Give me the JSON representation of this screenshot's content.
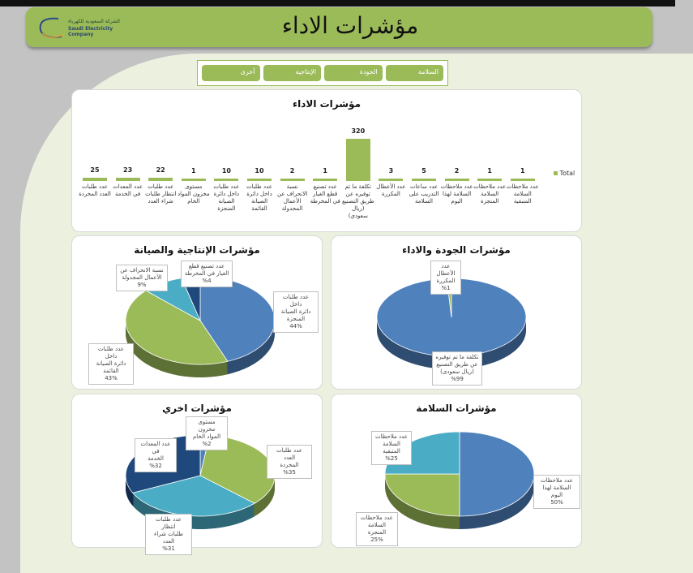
{
  "header": {
    "title": "مؤشرات الاداء",
    "logo_ar": "الشركة السعودية للكهرباء",
    "logo_en": "Saudi Electricity Company"
  },
  "tabs": [
    {
      "label": "أخرى"
    },
    {
      "label": "الإنتاجية"
    },
    {
      "label": "الجودة"
    },
    {
      "label": "السلامة"
    }
  ],
  "colors": {
    "green": "#9bbb59",
    "blue": "#4f81bd",
    "teal": "#4bacc6",
    "navy": "#1f497d",
    "panel": "#ebf1de"
  },
  "chart_data": [
    {
      "type": "bar",
      "title": "مؤشرات الاداء",
      "legend": "Total",
      "legend_position": "right",
      "grid": false,
      "categories": [
        "عدد طلبات العدد المخردة",
        "عدد المعدات في الخدمة",
        "عدد طلبات انتظار طلبات شراء العدد",
        "مستوى مخزون المواد الخام",
        "عدد طلبات داخل دائرة الصيانة المنجزة",
        "عدد طلبات داخل دائرة الصيانة القائمة",
        "نسبة الانحراف عن الأعمال المجدولة",
        "عدد تصنيع قطع الغيار في المخرطة",
        "تكلفة ما تم توفيره عن طريق التصنيع (ريال سعودي)",
        "عدد الأعطال المكررة",
        "عدد ساعات التدريب على السلامة",
        "عدد ملاحظات السلامة لهذا اليوم",
        "عدد ملاحظات السلامة المنجزة",
        "عدد ملاحظات السلامة المتبقية"
      ],
      "values": [
        25,
        23,
        22,
        1,
        10,
        10,
        2,
        1,
        320,
        3,
        5,
        2,
        1,
        1
      ]
    },
    {
      "type": "pie",
      "title": "مؤشرات الإنتاجية والصيانة",
      "slices": [
        {
          "label": "عدد طلبات داخل\nدائرة الصيانة\nالمنجزة",
          "pct": "44%",
          "value": 44,
          "color": "#4f81bd"
        },
        {
          "label": "عدد طلبات داخل\nدائرة الصيانة\nالقائمة",
          "pct": "43%",
          "value": 43,
          "color": "#9bbb59"
        },
        {
          "label": "نسبة الانحراف عن\nالأعمال المجدولة",
          "pct": "9%",
          "value": 9,
          "color": "#4bacc6"
        },
        {
          "label": "عدد تصنيع قطع\nالغيار في المخرطة",
          "pct": "%4",
          "value": 4,
          "color": "#1f497d"
        }
      ]
    },
    {
      "type": "pie",
      "title": "مؤشرات الجودة والاداء",
      "slices": [
        {
          "label": "تكلفة ما تم توفيره\nعن طريق التصنيع\n(ريال سعودى)",
          "pct": "%99",
          "value": 99,
          "color": "#4f81bd"
        },
        {
          "label": "عدد الأعطال\nالمكررة",
          "pct": "%1",
          "value": 1,
          "color": "#9bbb59"
        }
      ]
    },
    {
      "type": "pie",
      "title": "مؤشرات اخري",
      "slices": [
        {
          "label": "مستوى مخزون\nالمواد الخام",
          "pct": "%2",
          "value": 2,
          "color": "#4f81bd"
        },
        {
          "label": "عدد طلبات العدد\nالمخردة",
          "pct": "%35",
          "value": 35,
          "color": "#9bbb59"
        },
        {
          "label": "عدد طلبات انتظار\nطلبات شراء العدد",
          "pct": "%31",
          "value": 31,
          "color": "#4bacc6"
        },
        {
          "label": "عدد المعدات في\nالخدمة",
          "pct": "%32",
          "value": 32,
          "color": "#1f497d"
        }
      ]
    },
    {
      "type": "pie",
      "title": "مؤشرات السلامة",
      "slices": [
        {
          "label": "عدد ملاحظات\nالسلامة لهذا اليوم",
          "pct": "50%",
          "value": 50,
          "color": "#4f81bd"
        },
        {
          "label": "عدد ملاحظات\nالسلامة المنجزة",
          "pct": "25%",
          "value": 25,
          "color": "#9bbb59"
        },
        {
          "label": "عدد ملاحظات\nالسلامة المتبقية",
          "pct": "%25",
          "value": 25,
          "color": "#4bacc6"
        }
      ]
    }
  ]
}
